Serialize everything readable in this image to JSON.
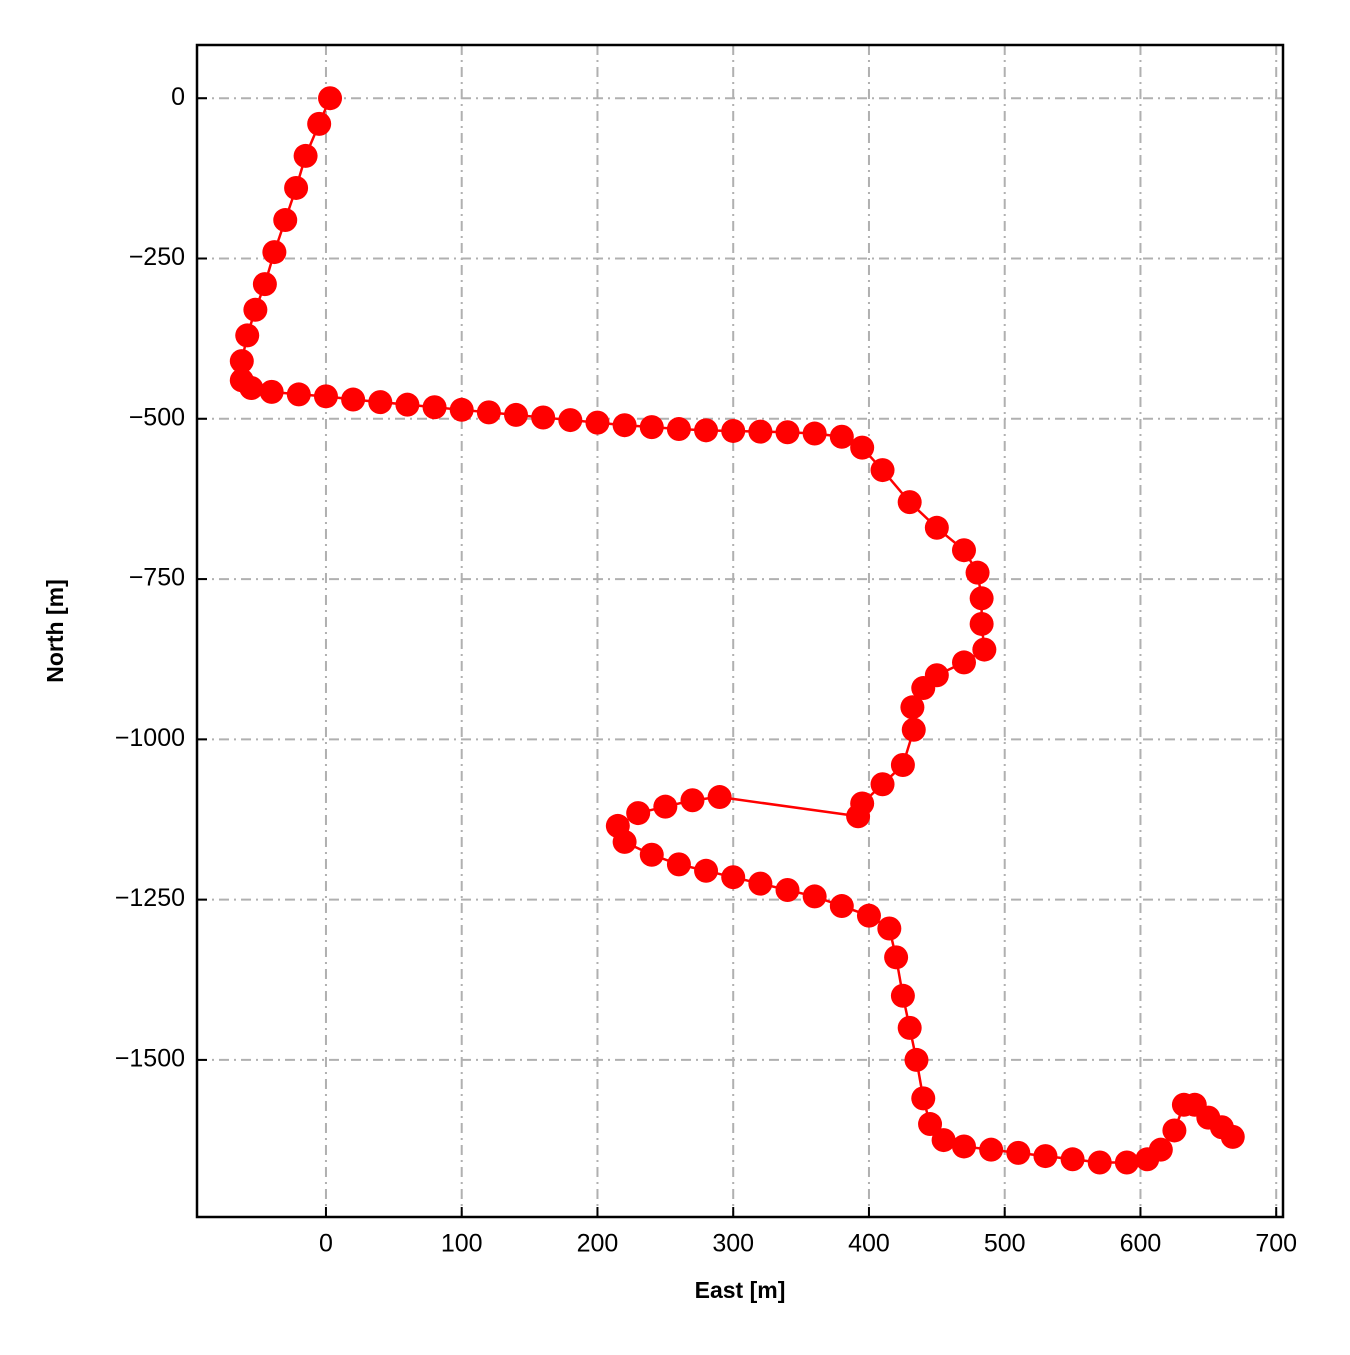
{
  "chart_data": {
    "type": "line",
    "xlabel": "East [m]",
    "ylabel": "North [m]",
    "color": "#ff0000",
    "grid": true,
    "xlim": [
      -95,
      705
    ],
    "ylim": [
      -1745,
      83
    ],
    "xticks": [
      0,
      100,
      200,
      300,
      400,
      500,
      600,
      700
    ],
    "yticks": [
      0,
      {
        "value": -250,
        "label": "−250"
      },
      {
        "value": -500,
        "label": "−500"
      },
      {
        "value": -750,
        "label": "−750"
      },
      {
        "value": -1000,
        "label": "−1000"
      },
      {
        "value": -1250,
        "label": "−1250"
      },
      {
        "value": -1500,
        "label": "−1500"
      }
    ],
    "x": [
      3,
      -5,
      -15,
      -22,
      -30,
      -38,
      -45,
      -52,
      -58,
      -62,
      -62,
      -55,
      -40,
      -20,
      0,
      20,
      40,
      60,
      80,
      100,
      120,
      140,
      160,
      180,
      200,
      220,
      240,
      260,
      280,
      300,
      320,
      340,
      360,
      380,
      395,
      410,
      430,
      450,
      470,
      480,
      483,
      483,
      485,
      470,
      450,
      440,
      432,
      433,
      425,
      410,
      395,
      392,
      290,
      270,
      250,
      230,
      215,
      220,
      240,
      260,
      280,
      300,
      320,
      340,
      360,
      380,
      400,
      415,
      420,
      425,
      430,
      435,
      440,
      445,
      455,
      470,
      490,
      510,
      530,
      550,
      570,
      590,
      605,
      615,
      625,
      632,
      640,
      650,
      660,
      668
    ],
    "values": [
      0,
      -40,
      -90,
      -140,
      -190,
      -240,
      -290,
      -330,
      -370,
      -410,
      -440,
      -452,
      -458,
      -462,
      -465,
      -470,
      -474,
      -478,
      -482,
      -486,
      -490,
      -494,
      -498,
      -502,
      -506,
      -510,
      -513,
      -516,
      -518,
      -519,
      -520,
      -521,
      -523,
      -528,
      -545,
      -580,
      -630,
      -670,
      -705,
      -740,
      -780,
      -820,
      -860,
      -880,
      -900,
      -920,
      -950,
      -985,
      -1040,
      -1070,
      -1100,
      -1120,
      -1090,
      -1095,
      -1105,
      -1115,
      -1135,
      -1160,
      -1180,
      -1195,
      -1205,
      -1215,
      -1225,
      -1235,
      -1245,
      -1260,
      -1275,
      -1295,
      -1340,
      -1400,
      -1450,
      -1500,
      -1560,
      -1600,
      -1625,
      -1635,
      -1640,
      -1645,
      -1650,
      -1655,
      -1660,
      -1660,
      -1655,
      -1640,
      -1610,
      -1570,
      -1570,
      -1590,
      -1605,
      -1620
    ]
  }
}
